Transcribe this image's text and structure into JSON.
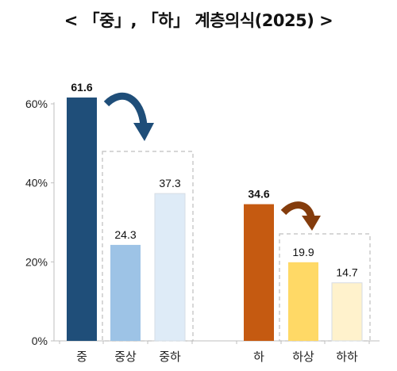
{
  "title": "< 「중」, 「하」 계층의식(2025) >",
  "chart_data": {
    "type": "bar",
    "title": "< 「중」, 「하」 계층의식(2025) >",
    "categories": [
      "중",
      "중상",
      "중하",
      "하",
      "하상",
      "하하"
    ],
    "values": [
      61.6,
      24.3,
      37.3,
      34.6,
      19.9,
      14.7
    ],
    "value_labels": [
      "61.6",
      "24.3",
      "37.3",
      "34.6",
      "19.9",
      "14.7"
    ],
    "ylim": [
      0,
      60
    ],
    "yticks": [
      0,
      20,
      40,
      60
    ],
    "ytick_labels": [
      "0%",
      "20%",
      "40%",
      "60%"
    ],
    "xlabel": "",
    "ylabel": "",
    "grid": false,
    "colors": [
      "#1F4E79",
      "#9DC3E6",
      "#DEEBF7",
      "#C55A11",
      "#FFD966",
      "#FFF2CC"
    ],
    "bold_value_labels": [
      "61.6",
      "34.6"
    ]
  }
}
